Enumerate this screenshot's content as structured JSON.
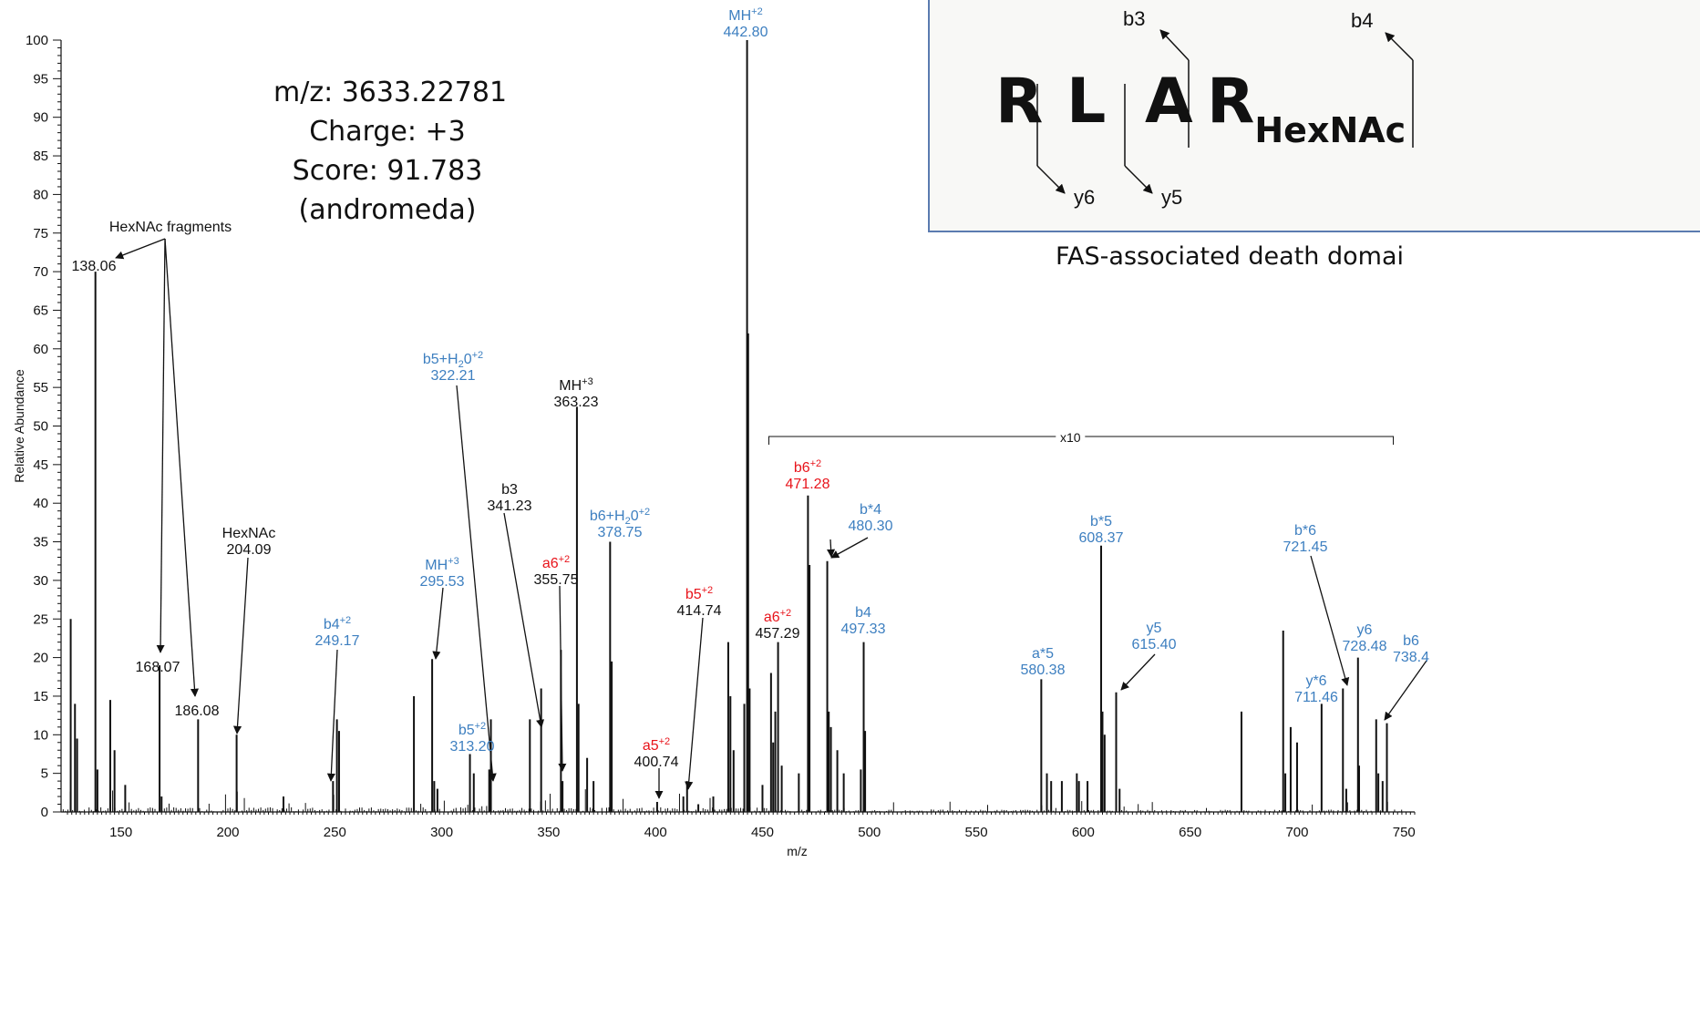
{
  "colors": {
    "blue": "#3d7fc0",
    "red": "#e8141b",
    "black": "#111111",
    "box_border": "#5b7bb0"
  },
  "info": {
    "mz": "m/z: 3633.22781",
    "charge": "Charge: +3",
    "score": "Score: 91.783",
    "engine": "(andromeda)"
  },
  "peptide": {
    "residues": [
      {
        "letter": "R",
        "sub": ""
      },
      {
        "letter": "L",
        "sub": ""
      },
      {
        "letter": "A",
        "sub": ""
      },
      {
        "letter": "R",
        "sub": "HexNAc"
      }
    ],
    "b_ions": [
      "b3",
      "b4"
    ],
    "y_ions": [
      "y6",
      "y5"
    ]
  },
  "protein_label": "FAS-associated death domai",
  "chart_data": {
    "type": "bar",
    "xlabel": "m/z",
    "ylabel": "Relative Abundance",
    "xlim": [
      122,
      755
    ],
    "ylim": [
      0,
      100
    ],
    "xticks": [
      150,
      200,
      250,
      300,
      350,
      400,
      450,
      500,
      550,
      600,
      650,
      700,
      750
    ],
    "yticks": [
      0,
      5,
      10,
      15,
      20,
      25,
      30,
      35,
      40,
      45,
      50,
      55,
      60,
      65,
      70,
      75,
      80,
      85,
      90,
      95,
      100
    ],
    "peaks": [
      {
        "x": 126.5,
        "y": 25
      },
      {
        "x": 128.5,
        "y": 14
      },
      {
        "x": 129.5,
        "y": 9.5
      },
      {
        "x": 138.06,
        "y": 70
      },
      {
        "x": 139.0,
        "y": 5.5
      },
      {
        "x": 145.0,
        "y": 14.5
      },
      {
        "x": 147.0,
        "y": 8
      },
      {
        "x": 152.0,
        "y": 3.5
      },
      {
        "x": 168.07,
        "y": 19
      },
      {
        "x": 169.0,
        "y": 2
      },
      {
        "x": 186.08,
        "y": 12
      },
      {
        "x": 204.09,
        "y": 10
      },
      {
        "x": 226.0,
        "y": 2
      },
      {
        "x": 249.17,
        "y": 4
      },
      {
        "x": 251.0,
        "y": 12
      },
      {
        "x": 252.0,
        "y": 10.5
      },
      {
        "x": 287.0,
        "y": 15
      },
      {
        "x": 295.53,
        "y": 19.8
      },
      {
        "x": 296.5,
        "y": 4
      },
      {
        "x": 298.0,
        "y": 3
      },
      {
        "x": 313.2,
        "y": 7.5
      },
      {
        "x": 315.0,
        "y": 5
      },
      {
        "x": 322.21,
        "y": 5.5
      },
      {
        "x": 323.0,
        "y": 12
      },
      {
        "x": 341.23,
        "y": 12
      },
      {
        "x": 346.5,
        "y": 16
      },
      {
        "x": 355.75,
        "y": 21
      },
      {
        "x": 356.5,
        "y": 4
      },
      {
        "x": 363.23,
        "y": 52.5
      },
      {
        "x": 364.0,
        "y": 14
      },
      {
        "x": 368.0,
        "y": 7
      },
      {
        "x": 371.0,
        "y": 4
      },
      {
        "x": 378.75,
        "y": 35
      },
      {
        "x": 379.5,
        "y": 19.5
      },
      {
        "x": 400.74,
        "y": 1.3
      },
      {
        "x": 413.0,
        "y": 2
      },
      {
        "x": 414.74,
        "y": 4
      },
      {
        "x": 420.0,
        "y": 1
      },
      {
        "x": 427.0,
        "y": 2
      },
      {
        "x": 434.0,
        "y": 22
      },
      {
        "x": 435.0,
        "y": 15
      },
      {
        "x": 436.5,
        "y": 8
      },
      {
        "x": 441.5,
        "y": 14
      },
      {
        "x": 442.8,
        "y": 100
      },
      {
        "x": 443.3,
        "y": 62
      },
      {
        "x": 444.0,
        "y": 16
      },
      {
        "x": 450.0,
        "y": 3.5
      },
      {
        "x": 454.0,
        "y": 1.8
      },
      {
        "x": 455.0,
        "y": 0.9
      },
      {
        "x": 456.0,
        "y": 1.3
      },
      {
        "x": 457.29,
        "y": 2.2
      },
      {
        "x": 459.0,
        "y": 0.6
      },
      {
        "x": 467.0,
        "y": 0.5
      },
      {
        "x": 471.28,
        "y": 4.1
      },
      {
        "x": 472.0,
        "y": 3.2
      },
      {
        "x": 480.3,
        "y": 3.25
      },
      {
        "x": 481.0,
        "y": 1.3
      },
      {
        "x": 482.0,
        "y": 1.1
      },
      {
        "x": 485.0,
        "y": 0.8
      },
      {
        "x": 488.0,
        "y": 0.5
      },
      {
        "x": 496.0,
        "y": 0.55
      },
      {
        "x": 497.33,
        "y": 2.2
      },
      {
        "x": 498.0,
        "y": 1.05
      },
      {
        "x": 580.38,
        "y": 1.72
      },
      {
        "x": 583.0,
        "y": 0.5
      },
      {
        "x": 585.0,
        "y": 0.4
      },
      {
        "x": 590.0,
        "y": 0.4
      },
      {
        "x": 597.0,
        "y": 0.5
      },
      {
        "x": 598.0,
        "y": 0.4
      },
      {
        "x": 602.0,
        "y": 0.4
      },
      {
        "x": 608.37,
        "y": 3.45
      },
      {
        "x": 609.0,
        "y": 1.3
      },
      {
        "x": 610.0,
        "y": 1.0
      },
      {
        "x": 615.4,
        "y": 1.55
      },
      {
        "x": 617.0,
        "y": 0.3
      },
      {
        "x": 674.0,
        "y": 1.3
      },
      {
        "x": 693.5,
        "y": 2.35
      },
      {
        "x": 694.5,
        "y": 0.5
      },
      {
        "x": 697.0,
        "y": 1.1
      },
      {
        "x": 700.0,
        "y": 0.9
      },
      {
        "x": 711.46,
        "y": 1.4
      },
      {
        "x": 721.45,
        "y": 1.6
      },
      {
        "x": 723.0,
        "y": 0.3
      },
      {
        "x": 728.48,
        "y": 2.0
      },
      {
        "x": 729.0,
        "y": 0.6
      },
      {
        "x": 737.0,
        "y": 1.2
      },
      {
        "x": 738.0,
        "y": 0.5
      },
      {
        "x": 740.0,
        "y": 0.4
      },
      {
        "x": 742.0,
        "y": 1.15
      }
    ],
    "zoom_region": {
      "from": 453,
      "to": 745,
      "factor": "x10"
    },
    "annotations": [
      {
        "id": "hexnac-fragments",
        "ion": "HexNAc fragments",
        "sup": "",
        "mz": "",
        "color": "black"
      },
      {
        "id": "p138",
        "ion": "",
        "sup": "",
        "mz": "138.06",
        "color": "black"
      },
      {
        "id": "p168",
        "ion": "",
        "sup": "",
        "mz": "168.07",
        "color": "black"
      },
      {
        "id": "p186",
        "ion": "",
        "sup": "",
        "mz": "186.08",
        "color": "black"
      },
      {
        "id": "p204",
        "ion": "HexNAc",
        "sup": "",
        "mz": "204.09",
        "color": "black"
      },
      {
        "id": "p249",
        "ion": "b4",
        "sup": "+2",
        "mz": "249.17",
        "color": "blue"
      },
      {
        "id": "p295",
        "ion": "MH",
        "sup": "+3",
        "mz": "295.53",
        "color": "blue"
      },
      {
        "id": "p313",
        "ion": "b5",
        "sup": "+2",
        "mz": "313.20",
        "color": "blue"
      },
      {
        "id": "p322",
        "ion": "b5+H",
        "sub": "2",
        "ion2": "0",
        "sup": "+2",
        "mz": "322.21",
        "color": "blue"
      },
      {
        "id": "p341",
        "ion": "b3",
        "sup": "",
        "mz": "341.23",
        "color": "black"
      },
      {
        "id": "p355",
        "ion": "a6",
        "sup": "+2",
        "mz": "355.75",
        "color": "red",
        "mzcolor": "black"
      },
      {
        "id": "p363",
        "ion": "MH",
        "sup": "+3",
        "mz": "363.23",
        "color": "black"
      },
      {
        "id": "p378",
        "ion": "b6+H",
        "sub": "2",
        "ion2": "0",
        "sup": "+2",
        "mz": "378.75",
        "color": "blue"
      },
      {
        "id": "p400",
        "ion": "a5",
        "sup": "+2",
        "mz": "400.74",
        "color": "red",
        "mzcolor": "black"
      },
      {
        "id": "p414",
        "ion": "b5",
        "sup": "+2",
        "mz": "414.74",
        "color": "red",
        "mzcolor": "black"
      },
      {
        "id": "p442",
        "ion": "MH",
        "sup": "+2",
        "mz": "442.80",
        "color": "blue"
      },
      {
        "id": "p457",
        "ion": "a6",
        "sup": "+2",
        "mz": "457.29",
        "color": "red",
        "mzcolor": "black"
      },
      {
        "id": "p471",
        "ion": "b6",
        "sup": "+2",
        "mz": "471.28",
        "color": "red"
      },
      {
        "id": "p480",
        "ion": "b*4",
        "sup": "",
        "mz": "480.30",
        "color": "blue"
      },
      {
        "id": "p497",
        "ion": "b4",
        "sup": "",
        "mz": "497.33",
        "color": "blue"
      },
      {
        "id": "p580",
        "ion": "a*5",
        "sup": "",
        "mz": "580.38",
        "color": "blue"
      },
      {
        "id": "p608",
        "ion": "b*5",
        "sup": "",
        "mz": "608.37",
        "color": "blue"
      },
      {
        "id": "p615",
        "ion": "y5",
        "sup": "",
        "mz": "615.40",
        "color": "blue"
      },
      {
        "id": "p711",
        "ion": "y*6",
        "sup": "",
        "mz": "711.46",
        "color": "blue"
      },
      {
        "id": "p721",
        "ion": "b*6",
        "sup": "",
        "mz": "721.45",
        "color": "blue"
      },
      {
        "id": "p728",
        "ion": "y6",
        "sup": "",
        "mz": "728.48",
        "color": "blue"
      },
      {
        "id": "p738",
        "ion": "b6",
        "sup": "",
        "mz": "738.4",
        "color": "blue"
      }
    ]
  }
}
